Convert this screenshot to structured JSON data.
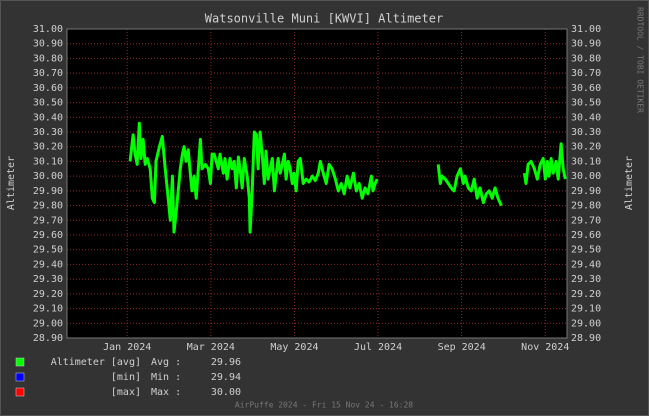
{
  "chart_data": {
    "type": "line",
    "title": "Watsonville Muni [KWVI] Altimeter",
    "y_label": "Altimeter",
    "y2_label": "Altimeter",
    "credit": "RRDTOOL / TOBI OETIKER",
    "footer": "AirPuffe 2024 - Fri 15 Nov 24 - 16:28",
    "grid": true,
    "ylim": [
      28.9,
      31.0
    ],
    "yticks": [
      {
        "value": 28.9,
        "label": "28.90"
      },
      {
        "value": 29.0,
        "label": "29.00"
      },
      {
        "value": 29.1,
        "label": "29.10"
      },
      {
        "value": 29.2,
        "label": "29.20"
      },
      {
        "value": 29.3,
        "label": "29.30"
      },
      {
        "value": 29.4,
        "label": "29.40"
      },
      {
        "value": 29.5,
        "label": "29.50"
      },
      {
        "value": 29.6,
        "label": "29.60"
      },
      {
        "value": 29.7,
        "label": "29.70"
      },
      {
        "value": 29.8,
        "label": "29.80"
      },
      {
        "value": 29.9,
        "label": "29.90"
      },
      {
        "value": 30.0,
        "label": "30.00"
      },
      {
        "value": 30.1,
        "label": "30.10"
      },
      {
        "value": 30.2,
        "label": "30.20"
      },
      {
        "value": 30.3,
        "label": "30.30"
      },
      {
        "value": 30.4,
        "label": "30.40"
      },
      {
        "value": 30.5,
        "label": "30.50"
      },
      {
        "value": 30.6,
        "label": "30.60"
      },
      {
        "value": 30.7,
        "label": "30.70"
      },
      {
        "value": 30.8,
        "label": "30.80"
      },
      {
        "value": 30.9,
        "label": "30.90"
      },
      {
        "value": 31.0,
        "label": "31.00"
      }
    ],
    "xlim": [
      -0.44,
      11.52
    ],
    "xticks": [
      {
        "value": 1,
        "label": "Jan 2024"
      },
      {
        "value": 3,
        "label": "Mar 2024"
      },
      {
        "value": 5,
        "label": "May 2024"
      },
      {
        "value": 7,
        "label": "Jul 2024"
      },
      {
        "value": 9,
        "label": "Sep 2024"
      },
      {
        "value": 11,
        "label": "Nov 2024"
      }
    ],
    "x": [
      1.07,
      1.14,
      1.19,
      1.24,
      1.29,
      1.33,
      1.38,
      1.43,
      1.48,
      1.55,
      1.6,
      1.65,
      1.69,
      1.77,
      1.84,
      1.91,
      1.98,
      2.03,
      2.08,
      2.12,
      2.17,
      2.22,
      2.27,
      2.32,
      2.36,
      2.41,
      2.46,
      2.51,
      2.55,
      2.6,
      2.65,
      2.7,
      2.75,
      2.79,
      2.87,
      2.94,
      2.99,
      3.03,
      3.08,
      3.13,
      3.18,
      3.22,
      3.3,
      3.34,
      3.39,
      3.46,
      3.51,
      3.56,
      3.61,
      3.66,
      3.7,
      3.75,
      3.8,
      3.87,
      3.92,
      3.94,
      3.99,
      4.04,
      4.09,
      4.13,
      4.18,
      4.23,
      4.28,
      4.32,
      4.37,
      4.42,
      4.47,
      4.52,
      4.56,
      4.61,
      4.66,
      4.71,
      4.76,
      4.8,
      4.85,
      4.9,
      4.95,
      4.99,
      5.04,
      5.09,
      5.14,
      5.21,
      5.28,
      5.35,
      5.43,
      5.5,
      5.57,
      5.62,
      5.69,
      5.76,
      5.83,
      5.9,
      5.98,
      6.05,
      6.12,
      6.19,
      6.26,
      6.33,
      6.41,
      6.48,
      6.55,
      6.62,
      6.69,
      6.76,
      6.84,
      6.88,
      6.93,
      6.98,
      7.5,
      8.44,
      8.49,
      8.53,
      8.61,
      8.68,
      8.75,
      8.82,
      8.89,
      8.97,
      9.04,
      9.08,
      9.16,
      9.23,
      9.3,
      9.37,
      9.44,
      9.52,
      9.59,
      9.66,
      9.73,
      9.8,
      9.87,
      9.95,
      10.2,
      10.5,
      10.54,
      10.59,
      10.66,
      10.74,
      10.81,
      10.88,
      10.95,
      11.0,
      11.05,
      11.09,
      11.14,
      11.19,
      11.26,
      11.31,
      11.38,
      11.43,
      11.48
    ],
    "series": [
      {
        "name": "Altimeter [avg]",
        "color": "#00ff00",
        "values": [
          30.1,
          30.28,
          30.15,
          30.08,
          30.36,
          30.12,
          30.25,
          30.08,
          30.12,
          30.05,
          29.85,
          29.82,
          30.1,
          30.2,
          30.27,
          30.05,
          29.85,
          29.7,
          30.0,
          29.62,
          29.75,
          29.9,
          30.05,
          30.15,
          30.2,
          30.1,
          30.18,
          30.02,
          29.9,
          30.0,
          29.85,
          30.05,
          30.25,
          30.05,
          30.08,
          30.05,
          29.95,
          30.15,
          30.15,
          30.1,
          30.05,
          30.15,
          30.02,
          30.12,
          29.98,
          30.12,
          30.05,
          30.1,
          29.92,
          30.13,
          30.05,
          29.92,
          30.12,
          30.0,
          29.85,
          29.62,
          29.9,
          30.3,
          30.28,
          30.05,
          30.3,
          30.15,
          29.95,
          30.17,
          29.98,
          30.05,
          30.12,
          29.9,
          30.0,
          30.12,
          30.02,
          30.08,
          30.15,
          29.98,
          30.1,
          30.05,
          29.95,
          30.02,
          29.9,
          30.1,
          30.12,
          29.95,
          29.98,
          29.96,
          30.0,
          29.97,
          30.02,
          30.1,
          30.02,
          29.95,
          30.08,
          30.05,
          29.98,
          29.9,
          29.95,
          29.88,
          30.0,
          29.92,
          30.02,
          29.9,
          29.95,
          29.85,
          29.92,
          29.88,
          30.0,
          29.9,
          29.95,
          29.98,
          null,
          30.08,
          29.95,
          30.0,
          29.98,
          29.95,
          29.92,
          29.9,
          30.0,
          30.05,
          29.95,
          30.0,
          29.92,
          29.9,
          29.98,
          29.85,
          29.92,
          29.82,
          29.88,
          29.9,
          29.85,
          29.92,
          29.85,
          29.8,
          null,
          30.02,
          29.95,
          30.08,
          30.1,
          30.05,
          29.98,
          30.08,
          30.12,
          29.98,
          30.1,
          30.0,
          30.12,
          30.02,
          30.1,
          29.98,
          30.22,
          30.05,
          29.98
        ]
      }
    ],
    "legend": [
      {
        "name": "Altimeter [avg]",
        "color": "#00ff00",
        "stat": "Avg :",
        "value": 29.96
      },
      {
        "name": "[min]",
        "color": "#0000ff",
        "stat": "Min :",
        "value": 29.94
      },
      {
        "name": "[max]",
        "color": "#ff0000",
        "stat": "Max :",
        "value": {
          "value": 30,
          "label": "30.00"
        }
      }
    ]
  }
}
